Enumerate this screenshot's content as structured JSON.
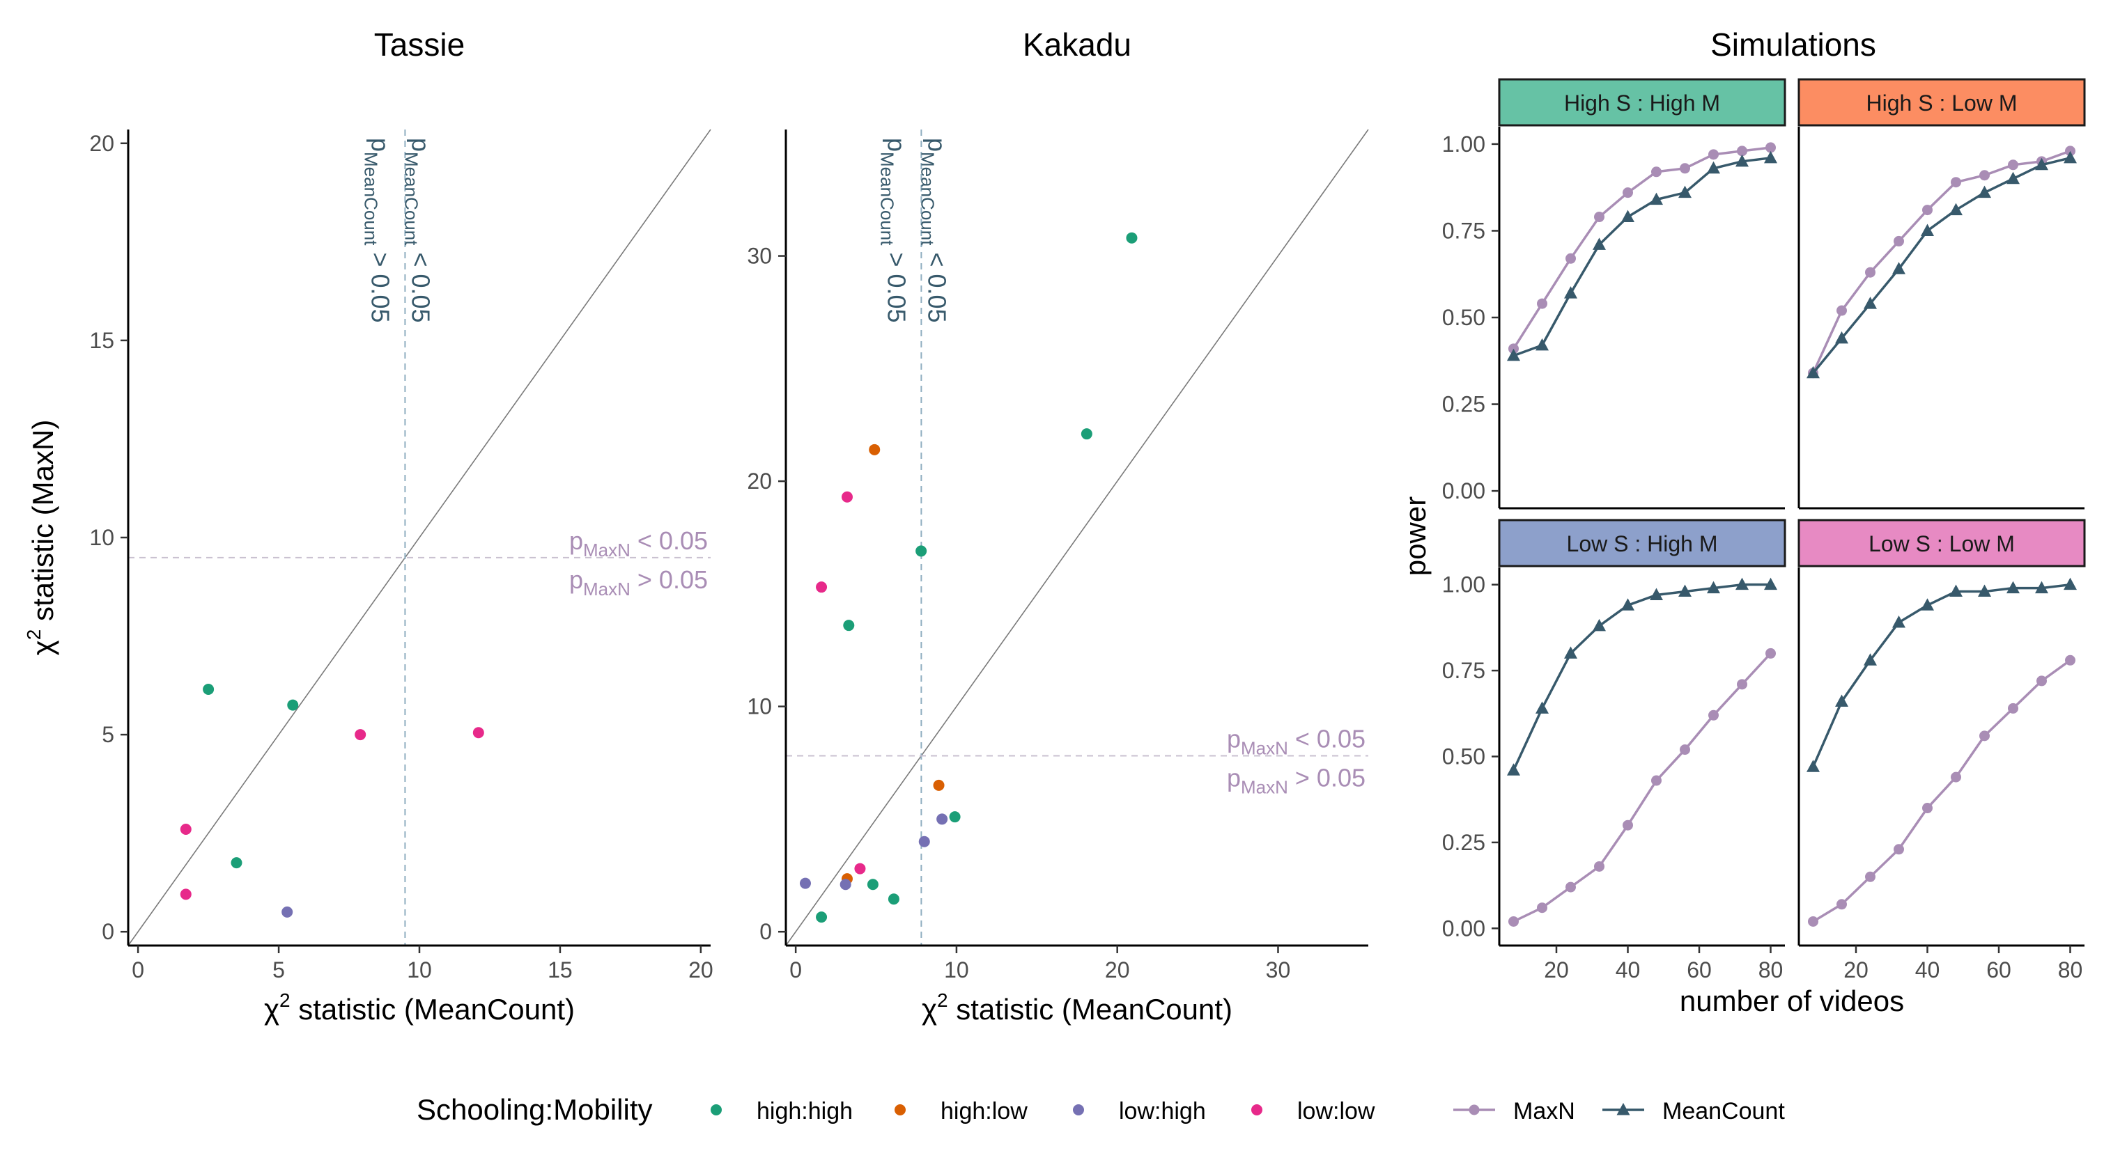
{
  "figure": {
    "colors": {
      "high_high": "#1B9E77",
      "high_low": "#D95F02",
      "low_high": "#7570B3",
      "low_low": "#E7298A",
      "maxn_line": "#A98DB5",
      "meancount_line": "#37596B",
      "strip_high_high": "#66C2A5",
      "strip_high_low": "#FC8D62",
      "strip_low_high": "#8DA0CB",
      "strip_low_low": "#E78AC3",
      "ref_v": "#8FAEC0",
      "ref_h": "#C9C0D0"
    }
  },
  "chart_data": [
    {
      "type": "scatter",
      "title": "Tassie",
      "xlabel": "statistic  (MeanCount)",
      "ylabel": "statistic  (MaxN)",
      "chi_symbol": "χ",
      "xlim": [
        0,
        20
      ],
      "ylim": [
        0,
        20
      ],
      "xticks": [
        0,
        5,
        10,
        15,
        20
      ],
      "yticks": [
        0,
        5,
        10,
        15,
        20
      ],
      "threshold_x": 9.49,
      "threshold_y": 9.49,
      "vlabel_left": {
        "p": "p",
        "sub": "MeanCount",
        "rest": " > 0.05"
      },
      "vlabel_right": {
        "p": "p",
        "sub": "MeanCount",
        "rest": " < 0.05"
      },
      "hlabel_top": {
        "p": "p",
        "sub": "MaxN",
        "rest": " < 0.05"
      },
      "hlabel_bottom": {
        "p": "p",
        "sub": "MaxN",
        "rest": " > 0.05"
      },
      "points": [
        {
          "x": 2.5,
          "y": 6.15,
          "group": "high:high"
        },
        {
          "x": 5.5,
          "y": 5.75,
          "group": "high:high"
        },
        {
          "x": 3.5,
          "y": 1.75,
          "group": "high:high"
        },
        {
          "x": 5.3,
          "y": 0.5,
          "group": "low:high"
        },
        {
          "x": 1.7,
          "y": 2.6,
          "group": "low:low"
        },
        {
          "x": 1.7,
          "y": 0.95,
          "group": "low:low"
        },
        {
          "x": 7.9,
          "y": 5.0,
          "group": "low:low"
        },
        {
          "x": 12.1,
          "y": 5.05,
          "group": "low:low"
        }
      ]
    },
    {
      "type": "scatter",
      "title": "Kakadu",
      "xlabel": "statistic  (MeanCount)",
      "ylabel": "",
      "chi_symbol": "χ",
      "xlim": [
        0,
        35
      ],
      "ylim": [
        0,
        35
      ],
      "xticks": [
        0,
        10,
        20,
        30
      ],
      "yticks": [
        0,
        10,
        20,
        30
      ],
      "threshold_x": 7.81,
      "threshold_y": 7.81,
      "vlabel_left": {
        "p": "p",
        "sub": "MeanCount",
        "rest": " > 0.05"
      },
      "vlabel_right": {
        "p": "p",
        "sub": "MeanCount",
        "rest": " < 0.05"
      },
      "hlabel_top": {
        "p": "p",
        "sub": "MaxN",
        "rest": " < 0.05"
      },
      "hlabel_bottom": {
        "p": "p",
        "sub": "MaxN",
        "rest": " > 0.05"
      },
      "points": [
        {
          "x": 20.9,
          "y": 30.8,
          "group": "high:high"
        },
        {
          "x": 18.1,
          "y": 22.1,
          "group": "high:high"
        },
        {
          "x": 7.8,
          "y": 16.9,
          "group": "high:high"
        },
        {
          "x": 3.3,
          "y": 13.6,
          "group": "high:high"
        },
        {
          "x": 9.9,
          "y": 5.1,
          "group": "high:high"
        },
        {
          "x": 1.6,
          "y": 0.65,
          "group": "high:high"
        },
        {
          "x": 4.8,
          "y": 2.1,
          "group": "high:high"
        },
        {
          "x": 6.1,
          "y": 1.45,
          "group": "high:high"
        },
        {
          "x": 4.9,
          "y": 21.4,
          "group": "high:low"
        },
        {
          "x": 8.9,
          "y": 6.5,
          "group": "high:low"
        },
        {
          "x": 3.2,
          "y": 2.35,
          "group": "high:low"
        },
        {
          "x": 0.6,
          "y": 2.15,
          "group": "low:high"
        },
        {
          "x": 9.1,
          "y": 5.0,
          "group": "low:high"
        },
        {
          "x": 8.0,
          "y": 4.0,
          "group": "low:high"
        },
        {
          "x": 3.1,
          "y": 2.1,
          "group": "low:high"
        },
        {
          "x": 3.2,
          "y": 19.3,
          "group": "low:low"
        },
        {
          "x": 1.6,
          "y": 15.3,
          "group": "low:low"
        },
        {
          "x": 4.0,
          "y": 2.8,
          "group": "low:low"
        }
      ]
    },
    {
      "type": "line",
      "title": "Simulations",
      "xlabel": "number of videos",
      "ylabel": "power",
      "xlim": [
        4,
        84
      ],
      "ylim": [
        0,
        1
      ],
      "xticks": [
        20,
        40,
        60,
        80
      ],
      "yticks": [
        0,
        0.25,
        0.5,
        0.75,
        1
      ],
      "ytick_labels": [
        "0.00",
        "0.25",
        "0.50",
        "0.75",
        "1.00"
      ],
      "x": [
        8,
        16,
        24,
        32,
        40,
        48,
        56,
        64,
        72,
        80
      ],
      "facets": [
        {
          "strip": "High S : High M",
          "strip_color_key": "strip_high_high",
          "series": [
            {
              "name": "MaxN",
              "values": [
                0.41,
                0.54,
                0.67,
                0.79,
                0.86,
                0.92,
                0.93,
                0.97,
                0.98,
                0.99
              ]
            },
            {
              "name": "MeanCount",
              "values": [
                0.39,
                0.42,
                0.57,
                0.71,
                0.79,
                0.84,
                0.86,
                0.93,
                0.95,
                0.96
              ]
            }
          ]
        },
        {
          "strip": "High S : Low M",
          "strip_color_key": "strip_high_low",
          "series": [
            {
              "name": "MaxN",
              "values": [
                0.34,
                0.52,
                0.63,
                0.72,
                0.81,
                0.89,
                0.91,
                0.94,
                0.95,
                0.98
              ]
            },
            {
              "name": "MeanCount",
              "values": [
                0.34,
                0.44,
                0.54,
                0.64,
                0.75,
                0.81,
                0.86,
                0.9,
                0.94,
                0.96
              ]
            }
          ]
        },
        {
          "strip": "Low S : High M",
          "strip_color_key": "strip_low_high",
          "series": [
            {
              "name": "MaxN",
              "values": [
                0.02,
                0.06,
                0.12,
                0.18,
                0.3,
                0.43,
                0.52,
                0.62,
                0.71,
                0.8
              ]
            },
            {
              "name": "MeanCount",
              "values": [
                0.46,
                0.64,
                0.8,
                0.88,
                0.94,
                0.97,
                0.98,
                0.99,
                1.0,
                1.0
              ]
            }
          ]
        },
        {
          "strip": "Low S : Low M",
          "strip_color_key": "strip_low_low",
          "series": [
            {
              "name": "MaxN",
              "values": [
                0.02,
                0.07,
                0.15,
                0.23,
                0.35,
                0.44,
                0.56,
                0.64,
                0.72,
                0.78
              ]
            },
            {
              "name": "MeanCount",
              "values": [
                0.47,
                0.66,
                0.78,
                0.89,
                0.94,
                0.98,
                0.98,
                0.99,
                0.99,
                1.0
              ]
            }
          ]
        }
      ]
    }
  ],
  "legend": {
    "title": "Schooling:Mobility",
    "groups": [
      {
        "label": "high:high",
        "color_key": "high_high"
      },
      {
        "label": "high:low",
        "color_key": "high_low"
      },
      {
        "label": "low:high",
        "color_key": "low_high"
      },
      {
        "label": "low:low",
        "color_key": "low_low"
      }
    ],
    "lines": [
      {
        "label": "MaxN",
        "color_key": "maxn_line",
        "marker": "circle"
      },
      {
        "label": "MeanCount",
        "color_key": "meancount_line",
        "marker": "triangle"
      }
    ]
  }
}
